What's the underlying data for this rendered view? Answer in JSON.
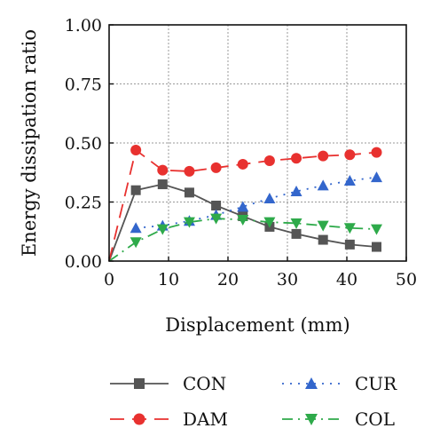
{
  "chart_data": {
    "type": "line",
    "xlabel": "Displacement (mm)",
    "ylabel": "Energy dissipation ratio",
    "xlim": [
      0,
      50
    ],
    "ylim": [
      0,
      1.0
    ],
    "xticks": [
      0,
      10,
      20,
      30,
      40,
      50
    ],
    "yticks": [
      0.0,
      0.25,
      0.5,
      0.75,
      1.0
    ],
    "xtick_labels": [
      "0",
      "10",
      "20",
      "30",
      "40",
      "50"
    ],
    "ytick_labels": [
      "0.00",
      "0.25",
      "0.50",
      "0.75",
      "1.00"
    ],
    "grid": true,
    "legend_position": "bottom",
    "series": [
      {
        "name": "CON",
        "color": "#555555",
        "marker": "square",
        "line_style": "solid",
        "x": [
          0,
          4.5,
          9,
          13.5,
          18,
          22.5,
          27,
          31.5,
          36,
          40.5,
          45
        ],
        "y": [
          0.0,
          0.3,
          0.325,
          0.29,
          0.235,
          0.19,
          0.145,
          0.115,
          0.09,
          0.07,
          0.06
        ]
      },
      {
        "name": "CUR",
        "color": "#3366cc",
        "marker": "triangle-up",
        "line_style": "dotted",
        "x": [
          4.5,
          9,
          13.5,
          18,
          22.5,
          27,
          31.5,
          36,
          40.5,
          45
        ],
        "y": [
          0.14,
          0.15,
          0.17,
          0.195,
          0.23,
          0.265,
          0.295,
          0.32,
          0.34,
          0.355
        ]
      },
      {
        "name": "DAM",
        "color": "#e8312f",
        "marker": "circle",
        "line_style": "dashed",
        "x": [
          0,
          4.5,
          9,
          13.5,
          18,
          22.5,
          27,
          31.5,
          36,
          40.5,
          45
        ],
        "y": [
          0.0,
          0.47,
          0.385,
          0.38,
          0.395,
          0.41,
          0.425,
          0.435,
          0.445,
          0.45,
          0.46
        ]
      },
      {
        "name": "COL",
        "color": "#2eaa4a",
        "marker": "triangle-down",
        "line_style": "dashdot",
        "x": [
          0,
          4.5,
          9,
          13.5,
          18,
          22.5,
          27,
          31.5,
          36,
          40.5,
          45
        ],
        "y": [
          0.0,
          0.08,
          0.135,
          0.165,
          0.18,
          0.175,
          0.165,
          0.16,
          0.15,
          0.14,
          0.135
        ]
      }
    ]
  }
}
